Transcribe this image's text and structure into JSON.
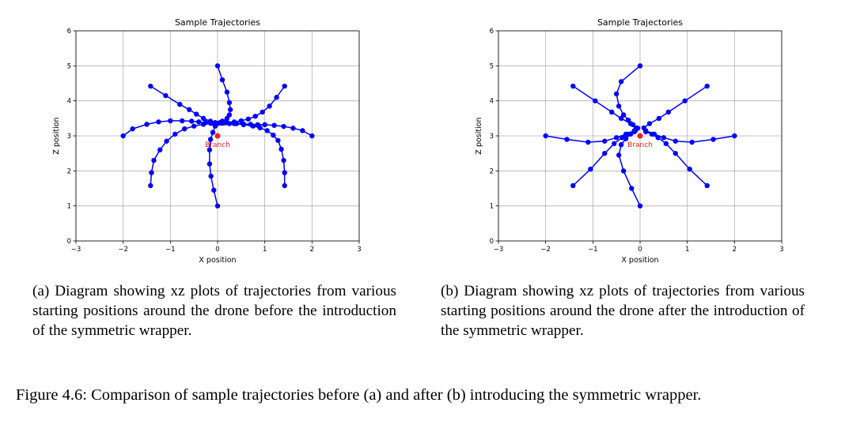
{
  "chart_data": [
    {
      "type": "scatter",
      "title": "Sample Trajectories",
      "xlabel": "X position",
      "ylabel": "Z position",
      "xlim": [
        -3,
        3
      ],
      "ylim": [
        0,
        6
      ],
      "xticks": [
        "−3",
        "−2",
        "−1",
        "0",
        "1",
        "2",
        "3"
      ],
      "yticks": [
        "0",
        "1",
        "2",
        "3",
        "4",
        "5",
        "6"
      ],
      "grid": true,
      "series_color": "#0000ff",
      "branch": {
        "label": "Branch",
        "x": 0.0,
        "y": 3.0,
        "color": "#e8251f"
      },
      "series": [
        {
          "x": [
            0.0,
            0.1,
            0.2,
            0.25,
            0.27,
            0.25,
            0.2,
            0.1,
            0.05,
            0.02
          ],
          "y": [
            5.0,
            4.6,
            4.25,
            3.95,
            3.75,
            3.6,
            3.5,
            3.42,
            3.38,
            3.36
          ]
        },
        {
          "x": [
            0.0,
            -0.08,
            -0.14,
            -0.17,
            -0.17,
            -0.15,
            -0.1,
            -0.05,
            -0.02
          ],
          "y": [
            1.0,
            1.45,
            1.85,
            2.2,
            2.6,
            2.9,
            3.1,
            3.28,
            3.35
          ]
        },
        {
          "x": [
            -2.0,
            -1.8,
            -1.5,
            -1.25,
            -1.0,
            -0.75,
            -0.55,
            -0.4,
            -0.25,
            -0.1
          ],
          "y": [
            3.0,
            3.2,
            3.33,
            3.4,
            3.43,
            3.43,
            3.42,
            3.4,
            3.38,
            3.36
          ]
        },
        {
          "x": [
            2.0,
            1.8,
            1.6,
            1.4,
            1.2,
            1.0,
            0.85,
            0.7,
            0.55,
            0.4,
            0.25,
            0.1
          ],
          "y": [
            3.0,
            3.15,
            3.22,
            3.27,
            3.3,
            3.32,
            3.32,
            3.33,
            3.34,
            3.35,
            3.35,
            3.36
          ]
        },
        {
          "x": [
            -1.42,
            -1.1,
            -0.8,
            -0.6,
            -0.45,
            -0.3,
            -0.15,
            -0.05
          ],
          "y": [
            4.42,
            4.15,
            3.9,
            3.75,
            3.62,
            3.5,
            3.42,
            3.38
          ]
        },
        {
          "x": [
            1.42,
            1.25,
            1.1,
            0.95,
            0.8,
            0.65,
            0.5,
            0.35,
            0.2,
            0.08
          ],
          "y": [
            4.42,
            4.1,
            3.85,
            3.68,
            3.56,
            3.48,
            3.43,
            3.4,
            3.38,
            3.37
          ]
        },
        {
          "x": [
            -1.42,
            -1.4,
            -1.35,
            -1.22,
            -1.08,
            -0.9,
            -0.7,
            -0.5,
            -0.3,
            -0.15
          ],
          "y": [
            1.58,
            1.95,
            2.3,
            2.6,
            2.85,
            3.05,
            3.2,
            3.28,
            3.33,
            3.36
          ]
        },
        {
          "x": [
            1.42,
            1.42,
            1.4,
            1.35,
            1.28,
            1.18,
            1.05,
            0.9,
            0.75,
            0.55,
            0.35,
            0.15
          ],
          "y": [
            1.58,
            1.95,
            2.3,
            2.62,
            2.87,
            3.02,
            3.15,
            3.23,
            3.28,
            3.32,
            3.35,
            3.37
          ]
        }
      ]
    },
    {
      "type": "scatter",
      "title": "Sample Trajectories",
      "xlabel": "X position",
      "ylabel": "Z position",
      "xlim": [
        -3,
        3
      ],
      "ylim": [
        0,
        6
      ],
      "xticks": [
        "−3",
        "−2",
        "−1",
        "0",
        "1",
        "2",
        "3"
      ],
      "yticks": [
        "0",
        "1",
        "2",
        "3",
        "4",
        "5",
        "6"
      ],
      "grid": true,
      "series_color": "#0000ff",
      "branch": {
        "label": "Branch",
        "x": 0.0,
        "y": 3.0,
        "color": "#e8251f"
      },
      "series": [
        {
          "x": [
            0.0,
            -0.4,
            -0.5,
            -0.45,
            -0.35,
            -0.25,
            -0.15,
            -0.05
          ],
          "y": [
            5.0,
            4.55,
            4.2,
            3.85,
            3.6,
            3.45,
            3.32,
            3.22
          ]
        },
        {
          "x": [
            0.0,
            -0.18,
            -0.35,
            -0.45,
            -0.4,
            -0.3,
            -0.2,
            -0.1
          ],
          "y": [
            1.0,
            1.5,
            2.0,
            2.45,
            2.75,
            2.92,
            3.05,
            3.15
          ]
        },
        {
          "x": [
            -2.0,
            -1.55,
            -1.1,
            -0.75,
            -0.5,
            -0.3,
            -0.12
          ],
          "y": [
            3.0,
            2.9,
            2.82,
            2.85,
            2.95,
            3.05,
            3.15
          ]
        },
        {
          "x": [
            2.0,
            1.55,
            1.1,
            0.75,
            0.5,
            0.3,
            0.12
          ],
          "y": [
            3.0,
            2.9,
            2.82,
            2.85,
            2.95,
            3.05,
            3.15
          ]
        },
        {
          "x": [
            -1.42,
            -0.95,
            -0.6,
            -0.4,
            -0.2,
            -0.08
          ],
          "y": [
            4.42,
            4.0,
            3.68,
            3.5,
            3.35,
            3.23
          ]
        },
        {
          "x": [
            1.42,
            0.95,
            0.6,
            0.4,
            0.2,
            0.08
          ],
          "y": [
            4.42,
            4.0,
            3.68,
            3.5,
            3.35,
            3.23
          ]
        },
        {
          "x": [
            -1.42,
            -1.05,
            -0.75,
            -0.55,
            -0.38,
            -0.25,
            -0.12
          ],
          "y": [
            1.58,
            2.05,
            2.5,
            2.78,
            2.95,
            3.05,
            3.12
          ]
        },
        {
          "x": [
            1.42,
            1.05,
            0.75,
            0.55,
            0.38,
            0.25,
            0.12
          ],
          "y": [
            1.58,
            2.05,
            2.5,
            2.78,
            2.95,
            3.05,
            3.12
          ]
        }
      ]
    }
  ],
  "captions": {
    "a": "(a) Diagram showing xz plots of trajectories from various starting positions around the drone before the introduction of the symmetric wrapper.",
    "b": "(b) Diagram showing xz plots of trajectories from various starting positions around the drone after the introduction of the symmetric wrapper.",
    "figure": "Figure 4.6: Comparison of sample trajectories before (a) and after (b) introducing the symmetric wrapper."
  }
}
